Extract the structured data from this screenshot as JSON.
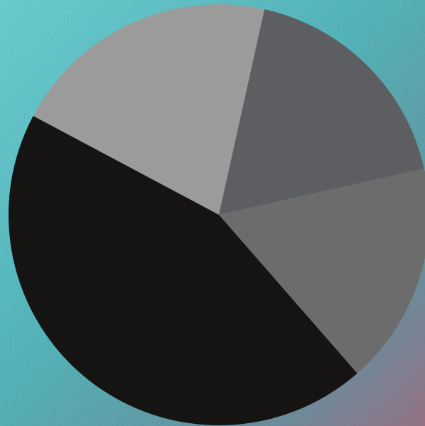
{
  "colors": {
    "background_teal": "#5fc7cc",
    "background_mauve": "#a06f85",
    "slice_light_gray": "#9b9b9b",
    "slice_dark_slate": "#5d5e62",
    "slice_mid_gray": "#6c6c6c",
    "slice_black": "#151413"
  },
  "chart_data": {
    "type": "pie",
    "title": "",
    "start_angle_deg": -62,
    "direction": "clockwise",
    "slices": [
      {
        "label": "",
        "value": 20.7,
        "color": "#9b9b9b"
      },
      {
        "label": "",
        "value": 18.0,
        "color": "#5d5e62"
      },
      {
        "label": "",
        "value": 17.1,
        "color": "#6c6c6c"
      },
      {
        "label": "",
        "value": 44.2,
        "color": "#151413"
      }
    ],
    "legend": "none",
    "data_labels": false
  }
}
